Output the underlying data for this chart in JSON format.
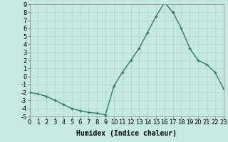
{
  "x": [
    0,
    1,
    2,
    3,
    4,
    5,
    6,
    7,
    8,
    9,
    10,
    11,
    12,
    13,
    14,
    15,
    16,
    17,
    18,
    19,
    20,
    21,
    22,
    23
  ],
  "y": [
    -2,
    -2.2,
    -2.5,
    -3,
    -3.5,
    -4,
    -4.3,
    -4.5,
    -4.6,
    -4.8,
    -1.2,
    0.5,
    2,
    3.5,
    5.5,
    7.5,
    9.2,
    8,
    6,
    3.5,
    2,
    1.5,
    0.5,
    -1.5
  ],
  "line_color": "#2e7d6e",
  "marker": "+",
  "background_color": "#c5e8e0",
  "grid_color": "#b0d8cc",
  "xlabel": "Humidex (Indice chaleur)",
  "ylim": [
    -5,
    9
  ],
  "xlim": [
    0,
    23
  ],
  "xticks": [
    0,
    1,
    2,
    3,
    4,
    5,
    6,
    7,
    8,
    9,
    10,
    11,
    12,
    13,
    14,
    15,
    16,
    17,
    18,
    19,
    20,
    21,
    22,
    23
  ],
  "yticks": [
    -5,
    -4,
    -3,
    -2,
    -1,
    0,
    1,
    2,
    3,
    4,
    5,
    6,
    7,
    8,
    9
  ],
  "xlabel_fontsize": 7,
  "tick_fontsize": 6,
  "linewidth": 1.0,
  "markersize": 3.5,
  "markeredgewidth": 1.0
}
